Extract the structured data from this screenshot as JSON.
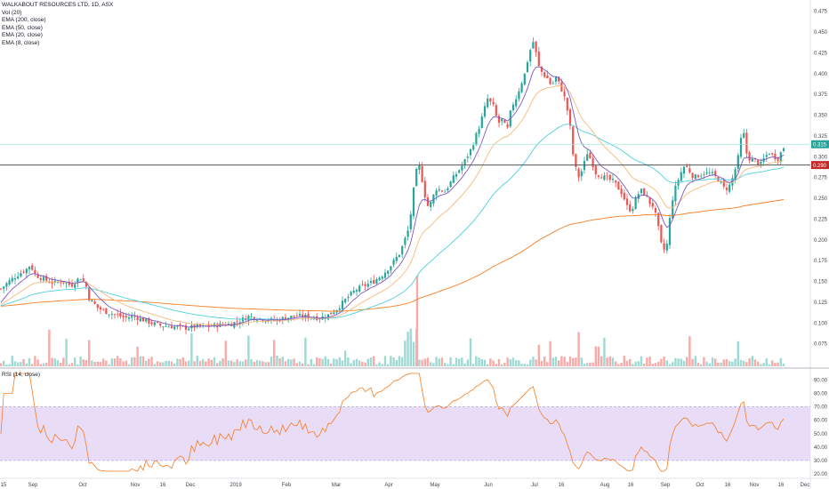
{
  "chart_data": {
    "type": "candlestick",
    "title": "WALKABOUT RESOURCES LTD, 1D, ASX",
    "indicators": [
      "Vol (20)",
      "EMA (200, close)",
      "EMA (50, close)",
      "EMA (20, close)",
      "EMA (8, close)"
    ],
    "rsi_label": "RSI (14, close)",
    "price_axis": {
      "ticks": [
        "0.475",
        "0.450",
        "0.425",
        "0.400",
        "0.375",
        "0.350",
        "0.325",
        "0.300",
        "0.275",
        "0.250",
        "0.225",
        "0.200",
        "0.175",
        "0.150",
        "0.125",
        "0.100",
        "0.075"
      ],
      "ylim": [
        0.05,
        0.48
      ]
    },
    "rsi_axis": {
      "ticks": [
        "90.00",
        "80.00",
        "70.00",
        "60.00",
        "50.00",
        "40.00",
        "30.00",
        "20.00"
      ],
      "ylim": [
        18,
        95
      ],
      "band": [
        30,
        70
      ]
    },
    "x_labels": [
      "15",
      "Sep",
      "Oct",
      "Nov",
      "16",
      "Dec",
      "2019",
      "Feb",
      "Mar",
      "Apr",
      "May",
      "Jun",
      "Jul",
      "16",
      "Aug",
      "16",
      "Sep",
      "Oct",
      "16",
      "Nov",
      "16",
      "Dec"
    ],
    "current_price": "0.315",
    "horizontal_line": "0.290",
    "colors": {
      "up": "#26a69a",
      "down": "#ef5350",
      "ema200": "#f57c20",
      "ema50": "#4dd0e1",
      "ema20": "#f8b97a",
      "ema8": "#7e57c2",
      "rsi": "#f57c20",
      "rsi_band": "#e9dcf7",
      "hline": "#555555",
      "price_line": "#a8e6df"
    },
    "series_keypoints": [
      [
        0,
        0.14
      ],
      [
        10,
        0.15
      ],
      [
        20,
        0.158
      ],
      [
        30,
        0.165
      ],
      [
        34,
        0.17
      ],
      [
        40,
        0.158
      ],
      [
        50,
        0.152
      ],
      [
        60,
        0.148
      ],
      [
        70,
        0.15
      ],
      [
        80,
        0.145
      ],
      [
        90,
        0.155
      ],
      [
        96,
        0.148
      ],
      [
        100,
        0.13
      ],
      [
        110,
        0.118
      ],
      [
        120,
        0.113
      ],
      [
        130,
        0.11
      ],
      [
        140,
        0.106
      ],
      [
        150,
        0.108
      ],
      [
        160,
        0.104
      ],
      [
        170,
        0.1
      ],
      [
        180,
        0.097
      ],
      [
        190,
        0.096
      ],
      [
        200,
        0.095
      ],
      [
        210,
        0.094
      ],
      [
        220,
        0.096
      ],
      [
        230,
        0.095
      ],
      [
        240,
        0.097
      ],
      [
        250,
        0.098
      ],
      [
        260,
        0.099
      ],
      [
        270,
        0.103
      ],
      [
        280,
        0.108
      ],
      [
        290,
        0.106
      ],
      [
        300,
        0.104
      ],
      [
        310,
        0.103
      ],
      [
        320,
        0.106
      ],
      [
        330,
        0.108
      ],
      [
        340,
        0.108
      ],
      [
        350,
        0.107
      ],
      [
        360,
        0.106
      ],
      [
        370,
        0.11
      ],
      [
        380,
        0.118
      ],
      [
        390,
        0.13
      ],
      [
        400,
        0.14
      ],
      [
        410,
        0.145
      ],
      [
        420,
        0.15
      ],
      [
        430,
        0.158
      ],
      [
        440,
        0.17
      ],
      [
        450,
        0.185
      ],
      [
        460,
        0.215
      ],
      [
        465,
        0.26
      ],
      [
        470,
        0.295
      ],
      [
        475,
        0.27
      ],
      [
        480,
        0.24
      ],
      [
        485,
        0.245
      ],
      [
        490,
        0.262
      ],
      [
        500,
        0.258
      ],
      [
        510,
        0.275
      ],
      [
        520,
        0.29
      ],
      [
        530,
        0.31
      ],
      [
        540,
        0.34
      ],
      [
        548,
        0.37
      ],
      [
        555,
        0.36
      ],
      [
        560,
        0.34
      ],
      [
        565,
        0.345
      ],
      [
        570,
        0.33
      ],
      [
        575,
        0.36
      ],
      [
        580,
        0.37
      ],
      [
        585,
        0.385
      ],
      [
        590,
        0.4
      ],
      [
        595,
        0.425
      ],
      [
        600,
        0.44
      ],
      [
        605,
        0.41
      ],
      [
        610,
        0.4
      ],
      [
        615,
        0.395
      ],
      [
        620,
        0.385
      ],
      [
        625,
        0.395
      ],
      [
        630,
        0.385
      ],
      [
        635,
        0.37
      ],
      [
        640,
        0.345
      ],
      [
        645,
        0.295
      ],
      [
        650,
        0.275
      ],
      [
        655,
        0.285
      ],
      [
        660,
        0.305
      ],
      [
        665,
        0.295
      ],
      [
        670,
        0.28
      ],
      [
        680,
        0.275
      ],
      [
        690,
        0.27
      ],
      [
        700,
        0.255
      ],
      [
        705,
        0.24
      ],
      [
        710,
        0.235
      ],
      [
        715,
        0.25
      ],
      [
        720,
        0.26
      ],
      [
        725,
        0.255
      ],
      [
        730,
        0.245
      ],
      [
        735,
        0.24
      ],
      [
        740,
        0.215
      ],
      [
        745,
        0.185
      ],
      [
        750,
        0.195
      ],
      [
        755,
        0.245
      ],
      [
        760,
        0.265
      ],
      [
        765,
        0.28
      ],
      [
        770,
        0.29
      ],
      [
        775,
        0.283
      ],
      [
        780,
        0.275
      ],
      [
        790,
        0.28
      ],
      [
        800,
        0.28
      ],
      [
        810,
        0.27
      ],
      [
        815,
        0.26
      ],
      [
        820,
        0.265
      ],
      [
        825,
        0.278
      ],
      [
        830,
        0.3
      ],
      [
        835,
        0.335
      ],
      [
        840,
        0.3
      ],
      [
        845,
        0.296
      ],
      [
        850,
        0.295
      ],
      [
        855,
        0.29
      ],
      [
        860,
        0.3
      ],
      [
        865,
        0.305
      ],
      [
        870,
        0.3
      ],
      [
        875,
        0.298
      ],
      [
        880,
        0.31
      ],
      [
        884,
        0.315
      ]
    ]
  }
}
